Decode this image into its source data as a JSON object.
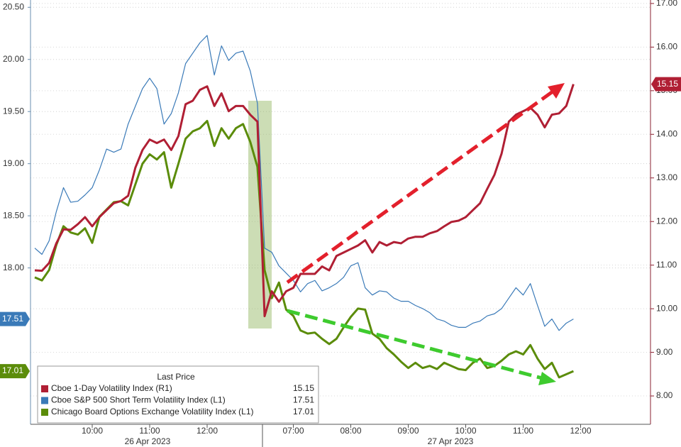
{
  "chart_data": {
    "type": "line",
    "categories": [
      null,
      null,
      null,
      null,
      null,
      null,
      null,
      null,
      "10:00",
      null,
      null,
      null,
      null,
      null,
      null,
      null,
      "11:00",
      null,
      null,
      null,
      null,
      null,
      null,
      null,
      "12:00",
      null,
      null,
      null,
      null,
      null,
      null,
      null,
      null,
      null,
      null,
      null,
      "07:00",
      null,
      null,
      null,
      null,
      null,
      null,
      null,
      "08:00",
      null,
      null,
      null,
      null,
      null,
      null,
      null,
      "09:00",
      null,
      null,
      null,
      null,
      null,
      null,
      null,
      "10:00",
      null,
      null,
      null,
      null,
      null,
      null,
      null,
      "11:00",
      null,
      null,
      null,
      null,
      null,
      null,
      null,
      "12:00"
    ],
    "date_labels": [
      "26 Apr 2023",
      "27 Apr 2023"
    ],
    "legend_title": "Last Price",
    "series": [
      {
        "name": "Cboe 1-Day Volatility Index  (R1)",
        "color": "#b01f34",
        "axis": "y2",
        "values": [
          10.88,
          10.87,
          11.05,
          11.5,
          11.82,
          11.81,
          11.94,
          12.1,
          11.89,
          12.1,
          12.26,
          12.42,
          12.47,
          12.59,
          13.23,
          13.64,
          13.88,
          13.8,
          13.88,
          13.64,
          13.96,
          14.69,
          14.77,
          15.02,
          15.1,
          14.65,
          14.94,
          14.53,
          14.65,
          14.65,
          14.45,
          14.29,
          9.83,
          10.4,
          10.16,
          10.4,
          10.48,
          10.8,
          10.8,
          10.8,
          10.97,
          10.88,
          11.21,
          11.29,
          11.37,
          11.45,
          11.57,
          11.29,
          11.53,
          11.45,
          11.53,
          11.5,
          11.61,
          11.65,
          11.65,
          11.73,
          11.78,
          11.89,
          11.99,
          12.02,
          12.1,
          12.26,
          12.42,
          12.75,
          13.07,
          13.56,
          14.29,
          14.45,
          14.53,
          14.61,
          14.45,
          14.16,
          14.45,
          14.48,
          14.65,
          15.15,
          null
        ]
      },
      {
        "name": "Cboe S&P 500 Short Term Volatility Index  (L1)",
        "color": "#3a7ab8",
        "axis": "y",
        "values": [
          18.19,
          18.13,
          18.26,
          18.54,
          18.77,
          18.63,
          18.64,
          18.7,
          18.77,
          18.94,
          19.14,
          19.11,
          19.14,
          19.38,
          19.55,
          19.72,
          19.82,
          19.72,
          19.38,
          19.48,
          19.68,
          19.96,
          20.06,
          20.16,
          20.23,
          19.85,
          20.13,
          19.99,
          20.06,
          20.08,
          19.89,
          19.58,
          18.19,
          18.15,
          18.02,
          17.95,
          17.88,
          17.77,
          17.85,
          17.88,
          17.78,
          17.81,
          17.85,
          17.91,
          18.02,
          18.05,
          17.81,
          17.74,
          17.78,
          17.77,
          17.71,
          17.68,
          17.68,
          17.64,
          17.61,
          17.57,
          17.51,
          17.49,
          17.45,
          17.43,
          17.43,
          17.47,
          17.49,
          17.54,
          17.56,
          17.61,
          17.71,
          17.81,
          17.74,
          17.85,
          17.64,
          17.44,
          17.51,
          17.4,
          17.47,
          17.51,
          null
        ]
      },
      {
        "name": "Chicago Board Options Exchange Volatility Index  (L1)",
        "color": "#5b8c0a",
        "axis": "y",
        "values": [
          17.91,
          17.88,
          17.98,
          18.22,
          18.4,
          18.34,
          18.32,
          18.38,
          18.24,
          18.49,
          18.56,
          18.63,
          18.64,
          18.6,
          18.8,
          19.0,
          19.09,
          19.04,
          19.11,
          18.77,
          19.0,
          19.24,
          19.31,
          19.34,
          19.41,
          19.17,
          19.34,
          19.24,
          19.34,
          19.38,
          19.21,
          18.97,
          17.98,
          17.71,
          17.86,
          17.6,
          17.54,
          17.4,
          17.37,
          17.38,
          17.32,
          17.27,
          17.32,
          17.43,
          17.53,
          17.61,
          17.6,
          17.37,
          17.32,
          17.23,
          17.17,
          17.1,
          17.04,
          17.09,
          17.04,
          17.06,
          17.03,
          17.09,
          17.06,
          17.03,
          17.02,
          17.09,
          17.13,
          17.04,
          17.06,
          17.11,
          17.17,
          17.2,
          17.17,
          17.26,
          17.13,
          17.03,
          17.09,
          16.95,
          16.98,
          17.01,
          null
        ]
      }
    ],
    "ylim": [
      16.5,
      20.57
    ],
    "yticks": [
      {
        "value": 18,
        "label": "18.00"
      },
      {
        "value": 18.5,
        "label": "18.50"
      },
      {
        "value": 19,
        "label": "19.00"
      },
      {
        "value": 19.5,
        "label": "19.50"
      },
      {
        "value": 20,
        "label": "20.00"
      },
      {
        "value": 20.5,
        "label": "20.50"
      }
    ],
    "y2lim": [
      7.35,
      17.08
    ],
    "y2ticks": [
      {
        "value": 8,
        "label": "8.00"
      },
      {
        "value": 9,
        "label": "9.00"
      },
      {
        "value": 10,
        "label": "10.00"
      },
      {
        "value": 11,
        "label": "11.00"
      },
      {
        "value": 12,
        "label": "12.00"
      },
      {
        "value": 13,
        "label": "13.00"
      },
      {
        "value": 14,
        "label": "14.00"
      },
      {
        "value": 15,
        "label": "15.00"
      },
      {
        "value": 16,
        "label": "16.00"
      },
      {
        "value": 17,
        "label": "17.00"
      }
    ],
    "grid": true
  }
}
